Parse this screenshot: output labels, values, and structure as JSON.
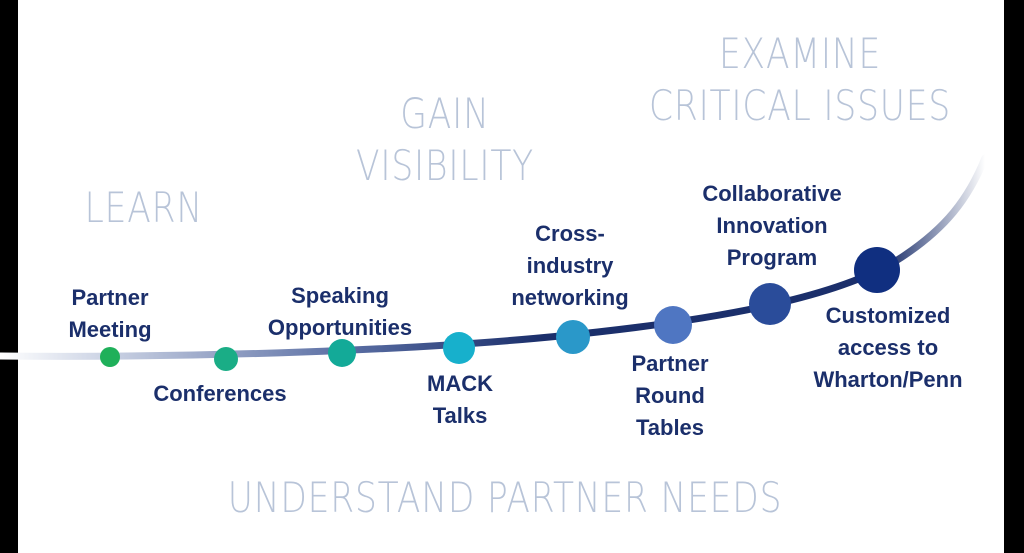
{
  "stages": {
    "learn": [
      "LEARN"
    ],
    "gain": [
      "GAIN",
      "VISIBILITY"
    ],
    "examine": [
      "EXAMINE",
      "CRITICAL ISSUES"
    ],
    "understand": [
      "UNDERSTAND PARTNER NEEDS"
    ]
  },
  "milestones": [
    {
      "label": [
        "Partner",
        "Meeting"
      ],
      "color": "#1fb05a"
    },
    {
      "label": [
        "Conferences"
      ],
      "color": "#1aad86"
    },
    {
      "label": [
        "Speaking",
        "Opportunities"
      ],
      "color": "#13aa98"
    },
    {
      "label": [
        "MACK",
        "Talks"
      ],
      "color": "#17b0cc"
    },
    {
      "label": [
        "Cross-",
        "industry",
        "networking"
      ],
      "color": "#2a98c9"
    },
    {
      "label": [
        "Partner",
        "Round",
        "Tables"
      ],
      "color": "#4f76c2"
    },
    {
      "label": [
        "Collaborative",
        "Innovation",
        "Program"
      ],
      "color": "#2a4c9a"
    },
    {
      "label": [
        "Customized",
        "access to",
        "Wharton/Penn"
      ],
      "color": "#102f80"
    }
  ],
  "colors": {
    "curve": "#1b2f6b",
    "stage_text": "#b8c4d8",
    "label_text": "#1b2f6b"
  }
}
